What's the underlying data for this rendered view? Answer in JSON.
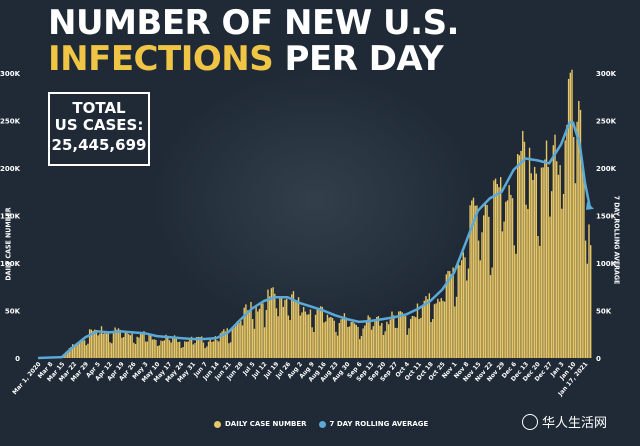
{
  "header": {
    "title_line1": "NUMBER OF NEW U.S.",
    "title_line2_accent": "INFECTIONS",
    "title_line2_rest": "PER DAY"
  },
  "total": {
    "label_line1": "TOTAL",
    "label_line2": "US CASES:",
    "value": "25,445,699"
  },
  "axes": {
    "left_label": "DAILY CASE NUMBER",
    "right_label": "7 DAY ROLLING AVERAGE"
  },
  "legend": {
    "daily": "DAILY CASE NUMBER",
    "rolling": "7 DAY ROLLING AVERAGE"
  },
  "watermark": "华人生活网",
  "colors": {
    "bars": "#e8c766",
    "line": "#5aa9d8",
    "background": "#1f2a36",
    "accent": "#f0c545"
  },
  "chart_data": {
    "type": "bar",
    "title": "NUMBER OF NEW U.S. INFECTIONS PER DAY",
    "ylabel": "DAILY CASE NUMBER",
    "y2label": "7 DAY ROLLING AVERAGE",
    "ylim": [
      0,
      300000
    ],
    "yticks": [
      "0",
      "50K",
      "100K",
      "150K",
      "200K",
      "250K",
      "300K"
    ],
    "xlim": [
      "2020-03-01",
      "2021-01-20"
    ],
    "xticks": [
      "Mar 1, 2020",
      "Mar 8",
      "Mar 15",
      "Mar 22",
      "Mar 29",
      "Apr 5",
      "Apr 12",
      "Apr 19",
      "Apr 26",
      "May 3",
      "May 10",
      "May 17",
      "May 24",
      "May 31",
      "Jun 7",
      "Jun 14",
      "Jun 21",
      "Jun 28",
      "Jul 5",
      "Jul 12",
      "Jul 19",
      "Jul 26",
      "Aug 2",
      "Aug 9",
      "Aug 16",
      "Aug 23",
      "Aug 30",
      "Sep 6",
      "Sep 13",
      "Sep 20",
      "Sep 27",
      "Oct 4",
      "Oct 11",
      "Oct 18",
      "Oct 25",
      "Nov 1",
      "Nov 8",
      "Nov 15",
      "Nov 22",
      "Nov 29",
      "Dec 6",
      "Dec 13",
      "Dec 20",
      "Dec 27",
      "Jan 3",
      "Jan 10",
      "Jan 17, 2021"
    ],
    "series": [
      {
        "name": "DAILY CASE NUMBER",
        "type": "bar",
        "x": [
          "2020-03-01",
          "2020-03-15",
          "2020-03-22",
          "2020-03-29",
          "2020-04-05",
          "2020-04-12",
          "2020-04-19",
          "2020-04-26",
          "2020-05-03",
          "2020-05-10",
          "2020-05-17",
          "2020-05-24",
          "2020-05-31",
          "2020-06-07",
          "2020-06-14",
          "2020-06-21",
          "2020-06-28",
          "2020-07-05",
          "2020-07-12",
          "2020-07-19",
          "2020-07-26",
          "2020-08-02",
          "2020-08-09",
          "2020-08-16",
          "2020-08-23",
          "2020-08-30",
          "2020-09-06",
          "2020-09-13",
          "2020-09-20",
          "2020-09-27",
          "2020-10-04",
          "2020-10-11",
          "2020-10-18",
          "2020-10-25",
          "2020-11-01",
          "2020-11-08",
          "2020-11-15",
          "2020-11-22",
          "2020-11-29",
          "2020-12-06",
          "2020-12-13",
          "2020-12-20",
          "2020-12-27",
          "2021-01-03",
          "2021-01-08",
          "2021-01-10",
          "2021-01-14",
          "2021-01-17",
          "2021-01-20"
        ],
        "y": [
          0,
          2000,
          15000,
          25000,
          30000,
          28000,
          30000,
          27000,
          25000,
          22000,
          23000,
          20000,
          20000,
          20000,
          22000,
          30000,
          45000,
          55000,
          63000,
          68000,
          66000,
          57000,
          53000,
          48000,
          44000,
          40000,
          37000,
          40000,
          42000,
          43000,
          46000,
          53000,
          62000,
          75000,
          95000,
          130000,
          165000,
          170000,
          180000,
          205000,
          215000,
          210000,
          200000,
          245000,
          290000,
          270000,
          230000,
          190000,
          140000
        ]
      },
      {
        "name": "7 DAY ROLLING AVERAGE",
        "type": "line",
        "x": [
          "2020-03-01",
          "2020-03-15",
          "2020-03-22",
          "2020-03-29",
          "2020-04-05",
          "2020-04-12",
          "2020-04-19",
          "2020-04-26",
          "2020-05-03",
          "2020-05-10",
          "2020-05-17",
          "2020-05-24",
          "2020-05-31",
          "2020-06-07",
          "2020-06-14",
          "2020-06-21",
          "2020-06-28",
          "2020-07-05",
          "2020-07-12",
          "2020-07-19",
          "2020-07-26",
          "2020-08-02",
          "2020-08-09",
          "2020-08-16",
          "2020-08-23",
          "2020-08-30",
          "2020-09-06",
          "2020-09-13",
          "2020-09-20",
          "2020-09-27",
          "2020-10-04",
          "2020-10-11",
          "2020-10-18",
          "2020-10-25",
          "2020-11-01",
          "2020-11-08",
          "2020-11-15",
          "2020-11-22",
          "2020-11-29",
          "2020-12-06",
          "2020-12-13",
          "2020-12-20",
          "2020-12-27",
          "2021-01-03",
          "2021-01-08",
          "2021-01-10",
          "2021-01-14",
          "2021-01-17",
          "2021-01-20"
        ],
        "y": [
          0,
          1000,
          12000,
          22000,
          28000,
          27000,
          28000,
          27000,
          26000,
          23000,
          22000,
          21000,
          20000,
          20000,
          21000,
          27000,
          40000,
          52000,
          60000,
          64000,
          64000,
          58000,
          54000,
          50000,
          45000,
          41000,
          38000,
          39000,
          41000,
          43000,
          46000,
          52000,
          60000,
          72000,
          90000,
          122000,
          155000,
          168000,
          175000,
          198000,
          210000,
          208000,
          205000,
          225000,
          248000,
          248000,
          225000,
          185000,
          158000
        ]
      }
    ]
  }
}
